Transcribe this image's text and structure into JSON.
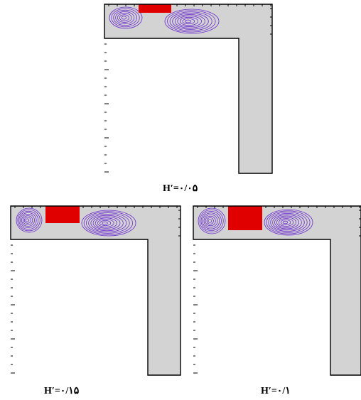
{
  "colors": {
    "fill": "#d3d3d3",
    "heater": "#e00000",
    "contour": "#6a2ad0",
    "wall": "#000000",
    "background": "#ffffff"
  },
  "panels": [
    {
      "id": "top",
      "caption": "H′=۰/۰۵"
    },
    {
      "id": "bottom-left",
      "caption": "H′=۰/۱۵"
    },
    {
      "id": "bottom-right",
      "caption": "H′=۰/۱"
    }
  ]
}
